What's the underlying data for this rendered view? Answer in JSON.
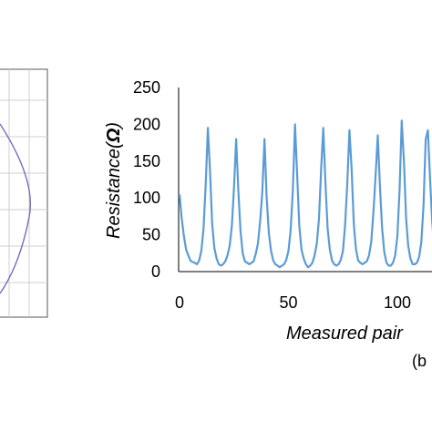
{
  "figure": {
    "panel_label": "(b"
  },
  "chart_data": [
    {
      "type": "line",
      "panel": "left (partially visible)",
      "title": "",
      "xlabel": "",
      "ylabel": "",
      "grid": true,
      "series": [
        {
          "color": "#6f6fc0",
          "shape": "arc bulging right"
        }
      ]
    },
    {
      "type": "line",
      "title": "",
      "xlabel": "Measured pair",
      "ylabel": "Resistance(Ω)",
      "ylabel_parts": {
        "text": "Resistance(",
        "unit": "Ω",
        "close": ")"
      },
      "xlim": [
        0,
        125
      ],
      "ylim": [
        0,
        250
      ],
      "x_ticks": [
        "0",
        "50",
        "100"
      ],
      "x_tick_values": [
        0,
        50,
        100
      ],
      "y_ticks": [
        "250",
        "200",
        "150",
        "100",
        "50",
        "0"
      ],
      "y_tick_values": [
        250,
        200,
        150,
        100,
        50,
        0
      ],
      "grid": false,
      "series": [
        {
          "color": "#5b9bd5",
          "x": [
            0,
            1,
            2,
            3,
            4,
            5,
            6,
            7,
            8,
            9,
            10,
            11,
            12,
            13,
            14,
            15,
            16,
            17,
            18,
            19,
            20,
            21,
            22,
            23,
            24,
            25,
            26,
            27,
            28,
            29,
            30,
            31,
            32,
            33,
            34,
            35,
            36,
            37,
            38,
            39,
            40,
            41,
            42,
            43,
            44,
            45,
            46,
            47,
            48,
            49,
            50,
            51,
            52,
            53,
            54,
            55,
            56,
            57,
            58,
            59,
            60,
            61,
            62,
            63,
            64,
            65,
            66,
            67,
            68,
            69,
            70,
            71,
            72,
            73,
            74,
            75,
            76,
            77,
            78,
            79,
            80,
            81,
            82,
            83,
            84,
            85,
            86,
            87,
            88,
            89,
            90,
            91,
            92,
            93,
            94,
            95,
            96,
            97,
            98,
            99,
            100,
            101,
            102,
            103,
            104,
            105,
            106,
            107,
            108,
            109,
            110,
            111,
            112,
            113,
            114,
            115,
            116,
            117,
            118,
            119,
            120,
            121,
            122,
            123,
            124,
            125
          ],
          "values": [
            105,
            72,
            48,
            30,
            22,
            15,
            13,
            12,
            10,
            15,
            28,
            58,
            118,
            195,
            135,
            65,
            32,
            18,
            10,
            8,
            10,
            14,
            22,
            35,
            62,
            115,
            180,
            110,
            55,
            25,
            14,
            12,
            10,
            12,
            14,
            24,
            38,
            68,
            108,
            180,
            100,
            52,
            28,
            15,
            10,
            8,
            6,
            8,
            10,
            16,
            28,
            56,
            110,
            200,
            130,
            62,
            30,
            18,
            10,
            6,
            8,
            12,
            22,
            38,
            72,
            140,
            195,
            120,
            58,
            30,
            15,
            10,
            8,
            10,
            16,
            28,
            62,
            118,
            192,
            140,
            65,
            30,
            15,
            12,
            10,
            12,
            14,
            22,
            40,
            80,
            130,
            185,
            115,
            58,
            26,
            12,
            8,
            8,
            12,
            22,
            48,
            110,
            205,
            150,
            72,
            35,
            18,
            10,
            10,
            12,
            20,
            40,
            90,
            180,
            192,
            125,
            68,
            30,
            14,
            10,
            8,
            10,
            20,
            55,
            90,
            140
          ]
        }
      ]
    }
  ]
}
